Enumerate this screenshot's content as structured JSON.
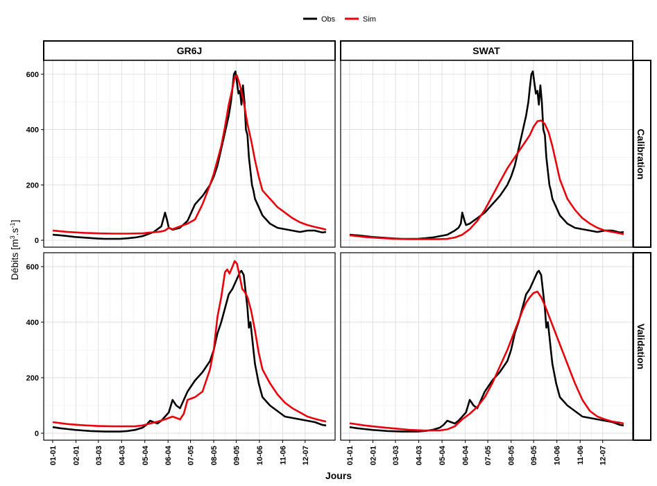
{
  "chart_data": {
    "type": "line",
    "legend": {
      "position": "top",
      "entries": [
        {
          "label": "Obs",
          "color": "#000000"
        },
        {
          "label": "Sim",
          "color": "#e8000b"
        }
      ]
    },
    "xlabel": "Jours",
    "ylabel": "Débits [m3.s-1]",
    "ylim": [
      -25,
      650
    ],
    "yticks": [
      0,
      200,
      400,
      600
    ],
    "xlim": [
      -12,
      377
    ],
    "x_tick_labels": [
      "01-01",
      "02-01",
      "03-03",
      "04-03",
      "05-04",
      "06-04",
      "07-05",
      "08-05",
      "09-05",
      "10-06",
      "11-06",
      "12-07"
    ],
    "x_tick_days": [
      0,
      31,
      61,
      92,
      123,
      154,
      184,
      215,
      245,
      276,
      307,
      337
    ],
    "grid": true,
    "columns": [
      "GR6J",
      "SWAT"
    ],
    "rows": [
      "Calibration",
      "Validation"
    ],
    "panels": [
      {
        "model": "GR6J",
        "period": "Calibration",
        "series": [
          {
            "name": "Obs",
            "x": [
              0,
              10,
              20,
              30,
              40,
              50,
              60,
              70,
              80,
              90,
              100,
              110,
              120,
              125,
              130,
              135,
              140,
              145,
              148,
              150,
              153,
              155,
              160,
              170,
              180,
              190,
              200,
              205,
              210,
              215,
              220,
              225,
              230,
              235,
              238,
              240,
              242,
              244,
              246,
              248,
              250,
              252,
              254,
              256,
              258,
              260,
              262,
              264,
              266,
              268,
              270,
              275,
              280,
              290,
              300,
              310,
              320,
              330,
              340,
              350,
              360,
              365
            ],
            "y": [
              20,
              18,
              15,
              12,
              10,
              8,
              6,
              5,
              5,
              5,
              7,
              10,
              15,
              20,
              25,
              30,
              40,
              50,
              80,
              100,
              70,
              45,
              38,
              45,
              70,
              130,
              160,
              180,
              200,
              230,
              270,
              330,
              390,
              450,
              500,
              550,
              600,
              610,
              570,
              530,
              540,
              490,
              560,
              500,
              400,
              380,
              300,
              250,
              200,
              180,
              150,
              120,
              90,
              60,
              45,
              40,
              35,
              30,
              35,
              35,
              28,
              30
            ]
          },
          {
            "name": "Sim",
            "x": [
              0,
              20,
              40,
              60,
              80,
              100,
              120,
              130,
              140,
              145,
              150,
              155,
              160,
              170,
              180,
              190,
              200,
              210,
              215,
              220,
              225,
              230,
              235,
              240,
              243,
              246,
              250,
              255,
              260,
              265,
              270,
              275,
              280,
              290,
              300,
              310,
              320,
              330,
              340,
              350,
              360,
              365
            ],
            "y": [
              35,
              30,
              27,
              25,
              24,
              24,
              25,
              28,
              30,
              32,
              35,
              45,
              40,
              50,
              60,
              75,
              130,
              200,
              240,
              290,
              340,
              410,
              490,
              550,
              590,
              595,
              560,
              500,
              420,
              360,
              290,
              230,
              180,
              150,
              120,
              100,
              80,
              65,
              55,
              48,
              42,
              38
            ]
          }
        ]
      },
      {
        "model": "SWAT",
        "period": "Calibration",
        "series": [
          {
            "name": "Obs",
            "x": [
              0,
              10,
              20,
              30,
              40,
              50,
              60,
              70,
              80,
              90,
              100,
              110,
              120,
              130,
              140,
              145,
              148,
              150,
              153,
              155,
              160,
              170,
              180,
              190,
              200,
              205,
              210,
              215,
              220,
              225,
              230,
              235,
              238,
              240,
              242,
              244,
              246,
              248,
              250,
              252,
              254,
              256,
              258,
              260,
              262,
              264,
              266,
              268,
              270,
              275,
              280,
              290,
              300,
              310,
              320,
              330,
              340,
              350,
              360,
              365
            ],
            "y": [
              20,
              18,
              15,
              12,
              10,
              8,
              6,
              5,
              5,
              5,
              7,
              10,
              15,
              20,
              35,
              45,
              60,
              100,
              70,
              55,
              60,
              80,
              100,
              130,
              160,
              180,
              200,
              230,
              270,
              330,
              390,
              450,
              500,
              550,
              600,
              610,
              570,
              530,
              540,
              490,
              560,
              500,
              400,
              380,
              300,
              250,
              200,
              180,
              150,
              120,
              90,
              60,
              45,
              40,
              35,
              30,
              35,
              35,
              28,
              30
            ]
          },
          {
            "name": "Sim",
            "x": [
              0,
              20,
              40,
              60,
              80,
              100,
              120,
              130,
              140,
              150,
              160,
              170,
              180,
              190,
              200,
              210,
              220,
              230,
              240,
              245,
              250,
              255,
              260,
              265,
              270,
              275,
              280,
              290,
              300,
              310,
              320,
              330,
              340,
              350,
              360,
              365
            ],
            "y": [
              18,
              12,
              8,
              5,
              4,
              4,
              4,
              5,
              10,
              20,
              40,
              70,
              110,
              160,
              210,
              260,
              300,
              340,
              380,
              410,
              430,
              433,
              420,
              390,
              340,
              280,
              220,
              150,
              110,
              80,
              60,
              45,
              35,
              30,
              25,
              22
            ]
          }
        ]
      },
      {
        "model": "GR6J",
        "period": "Validation",
        "series": [
          {
            "name": "Obs",
            "x": [
              0,
              10,
              20,
              30,
              40,
              50,
              60,
              70,
              80,
              90,
              100,
              110,
              120,
              125,
              130,
              135,
              140,
              145,
              150,
              155,
              160,
              165,
              170,
              180,
              190,
              200,
              210,
              215,
              220,
              225,
              230,
              235,
              240,
              245,
              250,
              252,
              255,
              258,
              260,
              262,
              264,
              266,
              268,
              270,
              275,
              280,
              290,
              300,
              310,
              320,
              330,
              340,
              350,
              360,
              365
            ],
            "y": [
              22,
              18,
              15,
              12,
              10,
              8,
              7,
              6,
              6,
              6,
              8,
              12,
              20,
              30,
              45,
              40,
              35,
              45,
              60,
              75,
              120,
              100,
              90,
              150,
              190,
              220,
              260,
              300,
              360,
              400,
              450,
              500,
              520,
              550,
              580,
              585,
              570,
              500,
              450,
              380,
              400,
              350,
              300,
              250,
              180,
              130,
              100,
              80,
              60,
              55,
              50,
              45,
              40,
              30,
              28
            ]
          },
          {
            "name": "Sim",
            "x": [
              0,
              20,
              40,
              60,
              80,
              100,
              110,
              120,
              130,
              140,
              150,
              155,
              160,
              165,
              170,
              175,
              180,
              190,
              200,
              210,
              215,
              220,
              225,
              230,
              233,
              236,
              240,
              243,
              246,
              250,
              253,
              256,
              260,
              265,
              270,
              275,
              280,
              290,
              300,
              310,
              320,
              330,
              340,
              350,
              360,
              365
            ],
            "y": [
              40,
              33,
              29,
              26,
              25,
              25,
              25,
              28,
              35,
              42,
              50,
              55,
              60,
              55,
              50,
              70,
              120,
              130,
              150,
              230,
              300,
              420,
              490,
              580,
              590,
              575,
              600,
              620,
              610,
              560,
              520,
              510,
              490,
              440,
              370,
              290,
              230,
              180,
              140,
              110,
              90,
              75,
              60,
              52,
              45,
              42
            ]
          }
        ]
      },
      {
        "model": "SWAT",
        "period": "Validation",
        "series": [
          {
            "name": "Obs",
            "x": [
              0,
              10,
              20,
              30,
              40,
              50,
              60,
              70,
              80,
              90,
              100,
              110,
              120,
              125,
              130,
              135,
              140,
              145,
              150,
              155,
              160,
              165,
              170,
              180,
              190,
              200,
              210,
              215,
              220,
              225,
              230,
              235,
              240,
              245,
              250,
              252,
              255,
              258,
              260,
              262,
              264,
              266,
              268,
              270,
              275,
              280,
              290,
              300,
              310,
              320,
              330,
              340,
              350,
              360,
              365
            ],
            "y": [
              22,
              18,
              15,
              12,
              10,
              8,
              7,
              6,
              6,
              6,
              8,
              12,
              20,
              30,
              45,
              40,
              35,
              45,
              60,
              75,
              120,
              100,
              90,
              150,
              190,
              220,
              260,
              300,
              360,
              400,
              450,
              500,
              520,
              550,
              580,
              585,
              570,
              500,
              450,
              380,
              400,
              350,
              300,
              250,
              180,
              130,
              100,
              80,
              60,
              55,
              50,
              45,
              40,
              30,
              28
            ]
          },
          {
            "name": "Sim",
            "x": [
              0,
              20,
              40,
              60,
              80,
              100,
              120,
              130,
              140,
              150,
              160,
              170,
              180,
              190,
              200,
              210,
              220,
              230,
              235,
              240,
              245,
              250,
              255,
              260,
              270,
              280,
              290,
              300,
              310,
              320,
              330,
              340,
              350,
              360,
              365
            ],
            "y": [
              36,
              28,
              22,
              17,
              12,
              10,
              10,
              14,
              25,
              50,
              70,
              95,
              130,
              180,
              240,
              300,
              370,
              440,
              470,
              490,
              505,
              510,
              490,
              460,
              390,
              320,
              250,
              180,
              120,
              80,
              60,
              50,
              42,
              38,
              35
            ]
          }
        ]
      }
    ]
  }
}
